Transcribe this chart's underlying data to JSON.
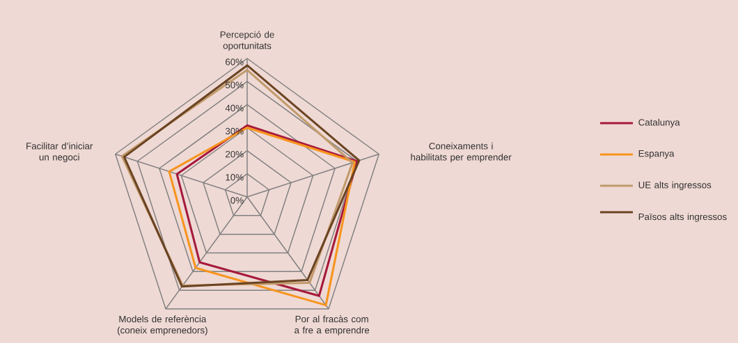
{
  "chart_data": {
    "type": "radar",
    "categories": [
      "Percepció de oportunitats",
      "Coneixaments i habilitats per emprender",
      "Por al fracàs com a fre a emprendre",
      "Models de referència (coneix emprenedors)",
      "Facilitar d’iniciar un negoci"
    ],
    "series": [
      {
        "name": "Catalunya",
        "color": "#a6193c",
        "values": [
          31,
          50,
          53,
          35,
          32
        ]
      },
      {
        "name": "Espanya",
        "color": "#f7941d",
        "values": [
          30,
          49,
          58,
          38,
          35.5
        ]
      },
      {
        "name": "UE alts ingressos",
        "color": "#c19a6b",
        "values": [
          55,
          48,
          46,
          47.5,
          57
        ]
      },
      {
        "name": "Països alts ingressos",
        "color": "#6b4423",
        "values": [
          57,
          51,
          44.5,
          48,
          56
        ]
      }
    ],
    "ylim": [
      0,
      60
    ],
    "yticks": [
      {
        "value": 0,
        "label": "0%"
      },
      {
        "value": 10,
        "label": "10%"
      },
      {
        "value": 20,
        "label": "20%"
      },
      {
        "value": 30,
        "label": "30%"
      },
      {
        "value": 40,
        "label": "40%"
      },
      {
        "value": 50,
        "label": "50%"
      },
      {
        "value": 60,
        "label": "60%"
      }
    ],
    "grid": true,
    "legend": "right",
    "marker": "none",
    "line_style": "solid"
  }
}
